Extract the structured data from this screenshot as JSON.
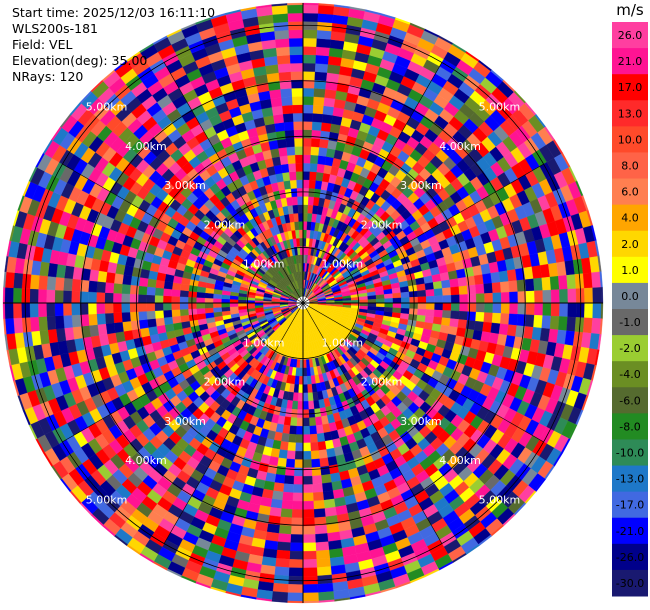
{
  "header": {
    "start_time": "Start time: 2025/12/03 16:11:10",
    "station": "WLS200s-181",
    "field": "Field: VEL",
    "elevation": "Elevation(deg): 35.00",
    "nrays": "NRays: 120"
  },
  "chart_data": {
    "type": "heatmap",
    "projection": "polar",
    "ray_count": 120,
    "gate_count": 36,
    "max_range_km": 5.4,
    "range_ring_labels": [
      "1.00km",
      "2.00km",
      "3.00km",
      "4.00km",
      "5.00km"
    ],
    "range_rings_km": [
      1,
      2,
      3,
      4,
      5
    ],
    "colorbar": {
      "unit": "m/s",
      "tick_labels": [
        "26.0",
        "21.0",
        "17.0",
        "13.0",
        "10.0",
        "8.0",
        "6.0",
        "4.0",
        "2.0",
        "1.0",
        "0.0",
        "-1.0",
        "-2.0",
        "-4.0",
        "-6.0",
        "-8.0",
        "-10.0",
        "-13.0",
        "-17.0",
        "-21.0",
        "-26.0",
        "-30.0"
      ],
      "bins_top_to_bottom": [
        {
          "range": [
            26,
            30
          ],
          "color": "#ff3fa0"
        },
        {
          "range": [
            21,
            26
          ],
          "color": "#ff1493"
        },
        {
          "range": [
            17,
            21
          ],
          "color": "#ff0000"
        },
        {
          "range": [
            13,
            17
          ],
          "color": "#ff2a2a"
        },
        {
          "range": [
            10,
            13
          ],
          "color": "#ff4a2a"
        },
        {
          "range": [
            8,
            10
          ],
          "color": "#ff6347"
        },
        {
          "range": [
            6,
            8
          ],
          "color": "#ff7f50"
        },
        {
          "range": [
            4,
            6
          ],
          "color": "#ffa500"
        },
        {
          "range": [
            2,
            4
          ],
          "color": "#ffd700"
        },
        {
          "range": [
            1,
            2
          ],
          "color": "#ffff00"
        },
        {
          "range": [
            0,
            1
          ],
          "color": "#778899"
        },
        {
          "range": [
            -1,
            0
          ],
          "color": "#696969"
        },
        {
          "range": [
            -2,
            -1
          ],
          "color": "#9acd32"
        },
        {
          "range": [
            -4,
            -2
          ],
          "color": "#6b8e23"
        },
        {
          "range": [
            -6,
            -4
          ],
          "color": "#556b2f"
        },
        {
          "range": [
            -8,
            -6
          ],
          "color": "#228b22"
        },
        {
          "range": [
            -10,
            -8
          ],
          "color": "#2e8b57"
        },
        {
          "range": [
            -13,
            -10
          ],
          "color": "#1e78c8"
        },
        {
          "range": [
            -17,
            -13
          ],
          "color": "#4169e1"
        },
        {
          "range": [
            -21,
            -17
          ],
          "color": "#0000ff"
        },
        {
          "range": [
            -26,
            -21
          ],
          "color": "#00008b"
        },
        {
          "range": [
            -30,
            -26
          ],
          "color": "#191970"
        }
      ]
    },
    "near_field": {
      "description": "coherent signal near radar",
      "positive_sector_deg": [
        95,
        225
      ],
      "positive_value": 3.0,
      "negative_sector_deg": [
        300,
        360
      ],
      "negative_value": -5.0,
      "coherent_range_km": 1.0
    },
    "far_field": "noise (random velocities across full scale)"
  }
}
